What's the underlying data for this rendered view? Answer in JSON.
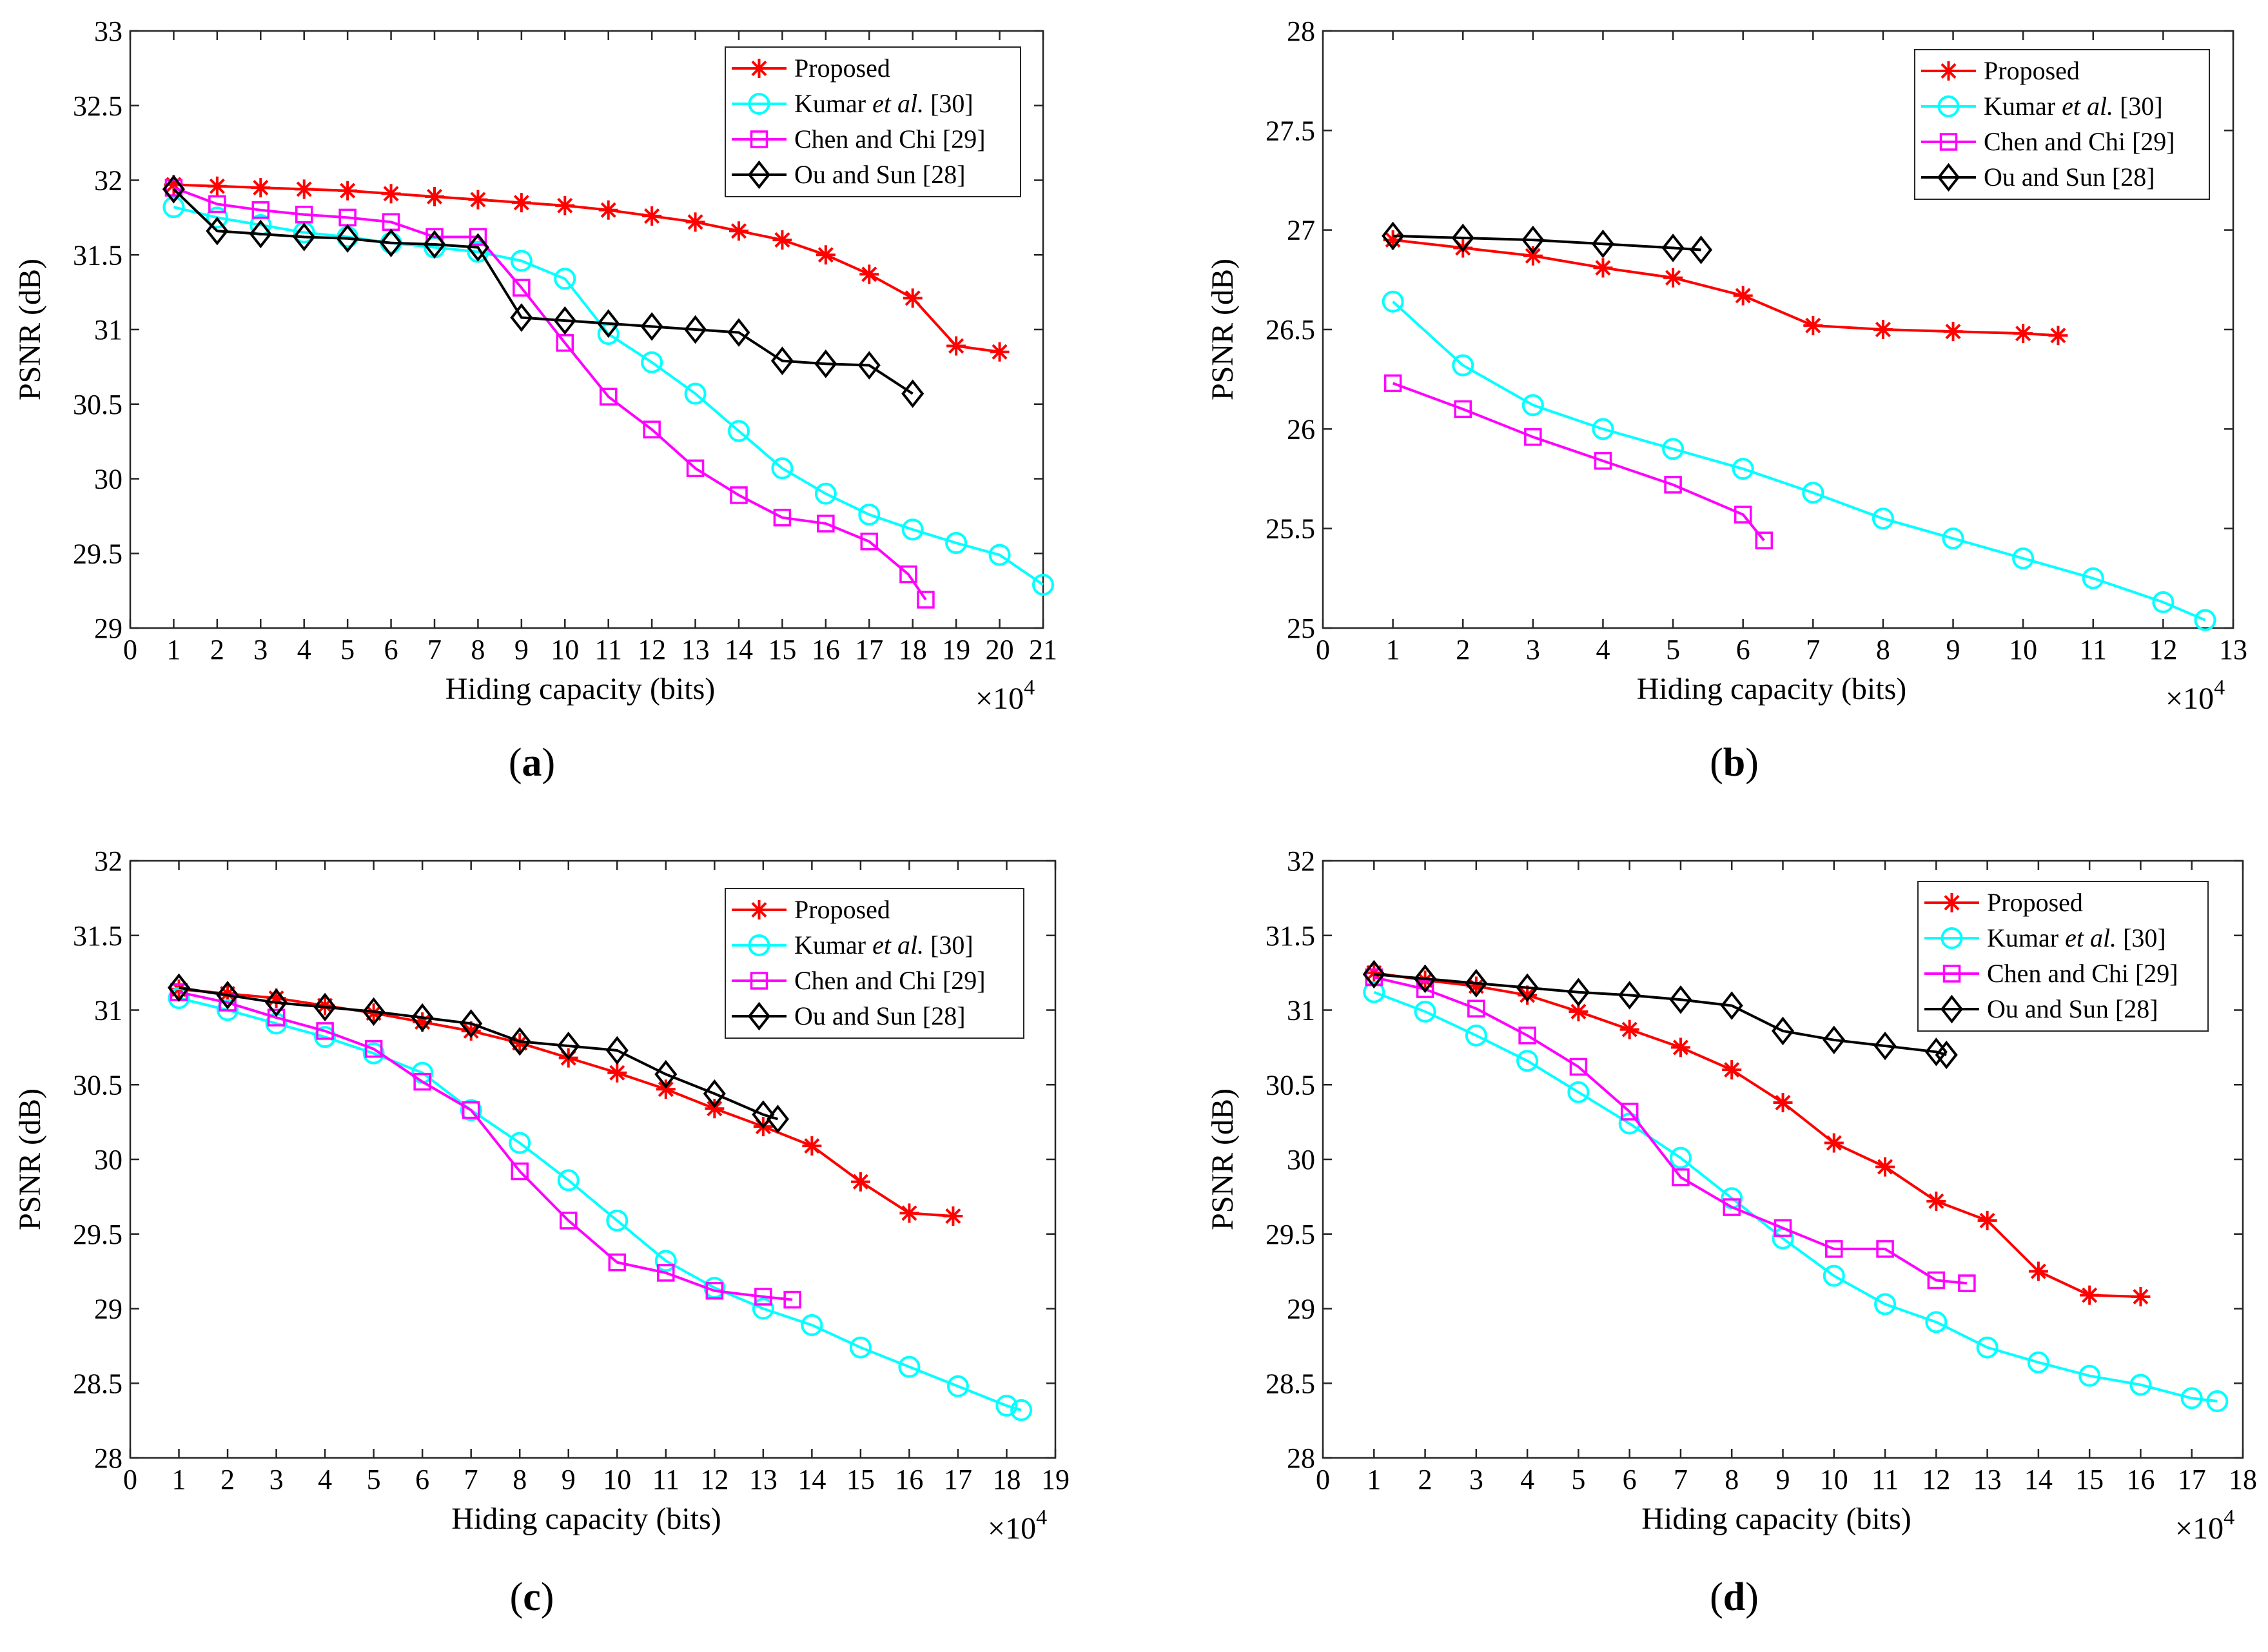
{
  "figure_caption_labels": [
    "a",
    "b",
    "c",
    "d"
  ],
  "chart_data": [
    {
      "type": "line",
      "panel": "a",
      "xlabel": "Hiding capacity (bits)",
      "ylabel": "PSNR (dB)",
      "x_multiplier_base": "×10",
      "x_multiplier_exp": "4",
      "xlim": [
        0,
        21
      ],
      "ylim": [
        29,
        33
      ],
      "xticks": [
        0,
        1,
        2,
        3,
        4,
        5,
        6,
        7,
        8,
        9,
        10,
        11,
        12,
        13,
        14,
        15,
        16,
        17,
        18,
        19,
        20,
        21
      ],
      "yticks": [
        29,
        29.5,
        30,
        30.5,
        31,
        31.5,
        32,
        32.5,
        33
      ],
      "ytick_labels": [
        "29",
        "29.5",
        "30",
        "30.5",
        "31",
        "31.5",
        "32",
        "32.5",
        "33"
      ],
      "legend_position": "top-right",
      "series": [
        {
          "name": "Proposed",
          "name_pre": "Proposed",
          "name_ital": "",
          "name_post": "",
          "color": "#ff0000",
          "marker": "star",
          "x": [
            1,
            2,
            3,
            4,
            5,
            6,
            7,
            8,
            9,
            10,
            11,
            12,
            13,
            14,
            15,
            16,
            17,
            18,
            19,
            20
          ],
          "y": [
            31.97,
            31.96,
            31.95,
            31.94,
            31.93,
            31.91,
            31.89,
            31.87,
            31.85,
            31.83,
            31.8,
            31.76,
            31.72,
            31.66,
            31.6,
            31.5,
            31.37,
            31.21,
            30.89,
            30.85
          ]
        },
        {
          "name": "Kumar et al. [30]",
          "name_pre": "Kumar ",
          "name_ital": "et al.",
          "name_post": " [30]",
          "color": "#00ffff",
          "marker": "circle",
          "x": [
            1,
            2,
            3,
            4,
            5,
            6,
            7,
            8,
            9,
            10,
            11,
            12,
            13,
            14,
            15,
            16,
            17,
            18,
            19,
            20,
            21
          ],
          "y": [
            31.82,
            31.75,
            31.7,
            31.65,
            31.62,
            31.58,
            31.55,
            31.52,
            31.46,
            31.34,
            30.97,
            30.78,
            30.57,
            30.32,
            30.07,
            29.9,
            29.76,
            29.66,
            29.57,
            29.49,
            29.29
          ]
        },
        {
          "name": "Chen and Chi [29]",
          "name_pre": "Chen and Chi [29]",
          "name_ital": "",
          "name_post": "",
          "color": "#ff00ff",
          "marker": "square",
          "x": [
            1,
            2,
            3,
            4,
            5,
            6,
            7,
            8,
            9,
            10,
            11,
            12,
            13,
            14,
            15,
            16,
            17,
            17.9,
            18.3
          ],
          "y": [
            31.95,
            31.84,
            31.8,
            31.77,
            31.75,
            31.72,
            31.62,
            31.62,
            31.28,
            30.91,
            30.55,
            30.33,
            30.07,
            29.89,
            29.74,
            29.7,
            29.58,
            29.36,
            29.19
          ]
        },
        {
          "name": "Ou and Sun [28]",
          "name_pre": "Ou and Sun [28]",
          "name_ital": "",
          "name_post": "",
          "color": "#000000",
          "marker": "diamond",
          "x": [
            1,
            2,
            3,
            4,
            5,
            6,
            7,
            8,
            9,
            10,
            11,
            12,
            13,
            14,
            15,
            16,
            17,
            18
          ],
          "y": [
            31.94,
            31.66,
            31.64,
            31.62,
            31.61,
            31.58,
            31.57,
            31.55,
            31.08,
            31.06,
            31.04,
            31.02,
            31.0,
            30.98,
            30.79,
            30.77,
            30.76,
            30.57
          ]
        }
      ]
    },
    {
      "type": "line",
      "panel": "b",
      "xlabel": "Hiding capacity (bits)",
      "ylabel": "PSNR (dB)",
      "x_multiplier_base": "×10",
      "x_multiplier_exp": "4",
      "xlim": [
        0,
        13
      ],
      "ylim": [
        25,
        28
      ],
      "xticks": [
        0,
        1,
        2,
        3,
        4,
        5,
        6,
        7,
        8,
        9,
        10,
        11,
        12,
        13
      ],
      "yticks": [
        25,
        25.5,
        26,
        26.5,
        27,
        27.5,
        28
      ],
      "ytick_labels": [
        "25",
        "25.5",
        "26",
        "26.5",
        "27",
        "27.5",
        "28"
      ],
      "legend_position": "top-right",
      "series": [
        {
          "name": "Proposed",
          "name_pre": "Proposed",
          "name_ital": "",
          "name_post": "",
          "color": "#ff0000",
          "marker": "star",
          "x": [
            1,
            2,
            3,
            4,
            5,
            6,
            7,
            8,
            9,
            10,
            10.5
          ],
          "y": [
            26.95,
            26.91,
            26.87,
            26.81,
            26.76,
            26.67,
            26.52,
            26.5,
            26.49,
            26.48,
            26.47
          ]
        },
        {
          "name": "Kumar et al. [30]",
          "name_pre": "Kumar ",
          "name_ital": "et al.",
          "name_post": " [30]",
          "color": "#00ffff",
          "marker": "circle",
          "x": [
            1,
            2,
            3,
            4,
            5,
            6,
            7,
            8,
            9,
            10,
            11,
            12,
            12.6
          ],
          "y": [
            26.64,
            26.32,
            26.12,
            26.0,
            25.9,
            25.8,
            25.68,
            25.55,
            25.45,
            25.35,
            25.25,
            25.13,
            25.04
          ]
        },
        {
          "name": "Chen and Chi [29]",
          "name_pre": "Chen and Chi [29]",
          "name_ital": "",
          "name_post": "",
          "color": "#ff00ff",
          "marker": "square",
          "x": [
            1,
            2,
            3,
            4,
            5,
            6,
            6.3
          ],
          "y": [
            26.23,
            26.1,
            25.96,
            25.84,
            25.72,
            25.57,
            25.44
          ]
        },
        {
          "name": "Ou and Sun [28]",
          "name_pre": "Ou and Sun [28]",
          "name_ital": "",
          "name_post": "",
          "color": "#000000",
          "marker": "diamond",
          "x": [
            1,
            2,
            3,
            4,
            5,
            5.4
          ],
          "y": [
            26.97,
            26.96,
            26.95,
            26.93,
            26.91,
            26.9
          ]
        }
      ]
    },
    {
      "type": "line",
      "panel": "c",
      "xlabel": "Hiding capacity (bits)",
      "ylabel": "PSNR (dB)",
      "x_multiplier_base": "×10",
      "x_multiplier_exp": "4",
      "xlim": [
        0,
        19
      ],
      "ylim": [
        28,
        32
      ],
      "xticks": [
        0,
        1,
        2,
        3,
        4,
        5,
        6,
        7,
        8,
        9,
        10,
        11,
        12,
        13,
        14,
        15,
        16,
        17,
        18,
        19
      ],
      "yticks": [
        28,
        28.5,
        29,
        29.5,
        30,
        30.5,
        31,
        31.5,
        32
      ],
      "ytick_labels": [
        "28",
        "28.5",
        "29",
        "29.5",
        "30",
        "30.5",
        "31",
        "31.5",
        "32"
      ],
      "legend_position": "top-right",
      "series": [
        {
          "name": "Proposed",
          "name_pre": "Proposed",
          "name_ital": "",
          "name_post": "",
          "color": "#ff0000",
          "marker": "star",
          "x": [
            1,
            2,
            3,
            4,
            5,
            6,
            7,
            8,
            9,
            10,
            11,
            12,
            13,
            14,
            15,
            16,
            16.9
          ],
          "y": [
            31.14,
            31.11,
            31.08,
            31.03,
            30.98,
            30.92,
            30.86,
            30.78,
            30.68,
            30.58,
            30.47,
            30.34,
            30.22,
            30.09,
            29.85,
            29.64,
            29.62
          ]
        },
        {
          "name": "Kumar et al. [30]",
          "name_pre": "Kumar ",
          "name_ital": "et al.",
          "name_post": " [30]",
          "color": "#00ffff",
          "marker": "circle",
          "x": [
            1,
            2,
            3,
            4,
            5,
            6,
            7,
            8,
            9,
            10,
            11,
            12,
            13,
            14,
            15,
            16,
            17,
            18,
            18.3
          ],
          "y": [
            31.08,
            31.0,
            30.91,
            30.82,
            30.71,
            30.58,
            30.33,
            30.11,
            29.86,
            29.59,
            29.32,
            29.14,
            29.0,
            28.89,
            28.74,
            28.61,
            28.48,
            28.35,
            28.32
          ]
        },
        {
          "name": "Chen and Chi [29]",
          "name_pre": "Chen and Chi [29]",
          "name_ital": "",
          "name_post": "",
          "color": "#ff00ff",
          "marker": "square",
          "x": [
            1,
            2,
            3,
            4,
            5,
            6,
            7,
            8,
            9,
            10,
            11,
            12,
            13,
            13.6
          ],
          "y": [
            31.12,
            31.05,
            30.95,
            30.86,
            30.74,
            30.52,
            30.33,
            29.92,
            29.59,
            29.31,
            29.24,
            29.12,
            29.08,
            29.06
          ]
        },
        {
          "name": "Ou and Sun [28]",
          "name_pre": "Ou and Sun [28]",
          "name_ital": "",
          "name_post": "",
          "color": "#000000",
          "marker": "diamond",
          "x": [
            1,
            2,
            3,
            4,
            5,
            6,
            7,
            8,
            9,
            10,
            11,
            12,
            13,
            13.3
          ],
          "y": [
            31.15,
            31.1,
            31.05,
            31.02,
            30.99,
            30.95,
            30.91,
            30.79,
            30.76,
            30.73,
            30.57,
            30.44,
            30.3,
            30.27
          ]
        }
      ]
    },
    {
      "type": "line",
      "panel": "d",
      "xlabel": "Hiding capacity (bits)",
      "ylabel": "PSNR (dB)",
      "x_multiplier_base": "×10",
      "x_multiplier_exp": "4",
      "xlim": [
        0,
        18
      ],
      "ylim": [
        28,
        32
      ],
      "xticks": [
        0,
        1,
        2,
        3,
        4,
        5,
        6,
        7,
        8,
        9,
        10,
        11,
        12,
        13,
        14,
        15,
        16,
        17,
        18
      ],
      "yticks": [
        28,
        28.5,
        29,
        29.5,
        30,
        30.5,
        31,
        31.5,
        32
      ],
      "ytick_labels": [
        "28",
        "28.5",
        "29",
        "29.5",
        "30",
        "30.5",
        "31",
        "31.5",
        "32"
      ],
      "legend_position": "top-right",
      "series": [
        {
          "name": "Proposed",
          "name_pre": "Proposed",
          "name_ital": "",
          "name_post": "",
          "color": "#ff0000",
          "marker": "star",
          "x": [
            1,
            2,
            3,
            4,
            5,
            6,
            7,
            8,
            9,
            10,
            11,
            12,
            13,
            14,
            15,
            16
          ],
          "y": [
            31.25,
            31.2,
            31.16,
            31.1,
            30.99,
            30.87,
            30.75,
            30.6,
            30.38,
            30.11,
            29.95,
            29.72,
            29.59,
            29.25,
            29.09,
            29.08
          ]
        },
        {
          "name": "Kumar et al. [30]",
          "name_pre": "Kumar ",
          "name_ital": "et al.",
          "name_post": " [30]",
          "color": "#00ffff",
          "marker": "circle",
          "x": [
            1,
            2,
            3,
            4,
            5,
            6,
            7,
            8,
            9,
            10,
            11,
            12,
            13,
            14,
            15,
            16,
            17,
            17.5
          ],
          "y": [
            31.12,
            30.99,
            30.83,
            30.66,
            30.45,
            30.24,
            30.01,
            29.74,
            29.47,
            29.22,
            29.03,
            28.91,
            28.74,
            28.64,
            28.55,
            28.49,
            28.4,
            28.38
          ]
        },
        {
          "name": "Chen and Chi [29]",
          "name_pre": "Chen and Chi [29]",
          "name_ital": "",
          "name_post": "",
          "color": "#ff00ff",
          "marker": "square",
          "x": [
            1,
            2,
            3,
            4,
            5,
            6,
            7,
            8,
            9,
            10,
            11,
            12,
            12.6
          ],
          "y": [
            31.22,
            31.14,
            31.01,
            30.83,
            30.62,
            30.32,
            29.88,
            29.68,
            29.54,
            29.4,
            29.4,
            29.19,
            29.17
          ]
        },
        {
          "name": "Ou and Sun [28]",
          "name_pre": "Ou and Sun [28]",
          "name_ital": "",
          "name_post": "",
          "color": "#000000",
          "marker": "diamond",
          "x": [
            1,
            2,
            3,
            4,
            5,
            6,
            7,
            8,
            9,
            10,
            11,
            12,
            12.2
          ],
          "y": [
            31.24,
            31.21,
            31.18,
            31.15,
            31.12,
            31.1,
            31.07,
            31.03,
            30.86,
            30.8,
            30.76,
            30.72,
            30.7
          ]
        }
      ]
    }
  ]
}
